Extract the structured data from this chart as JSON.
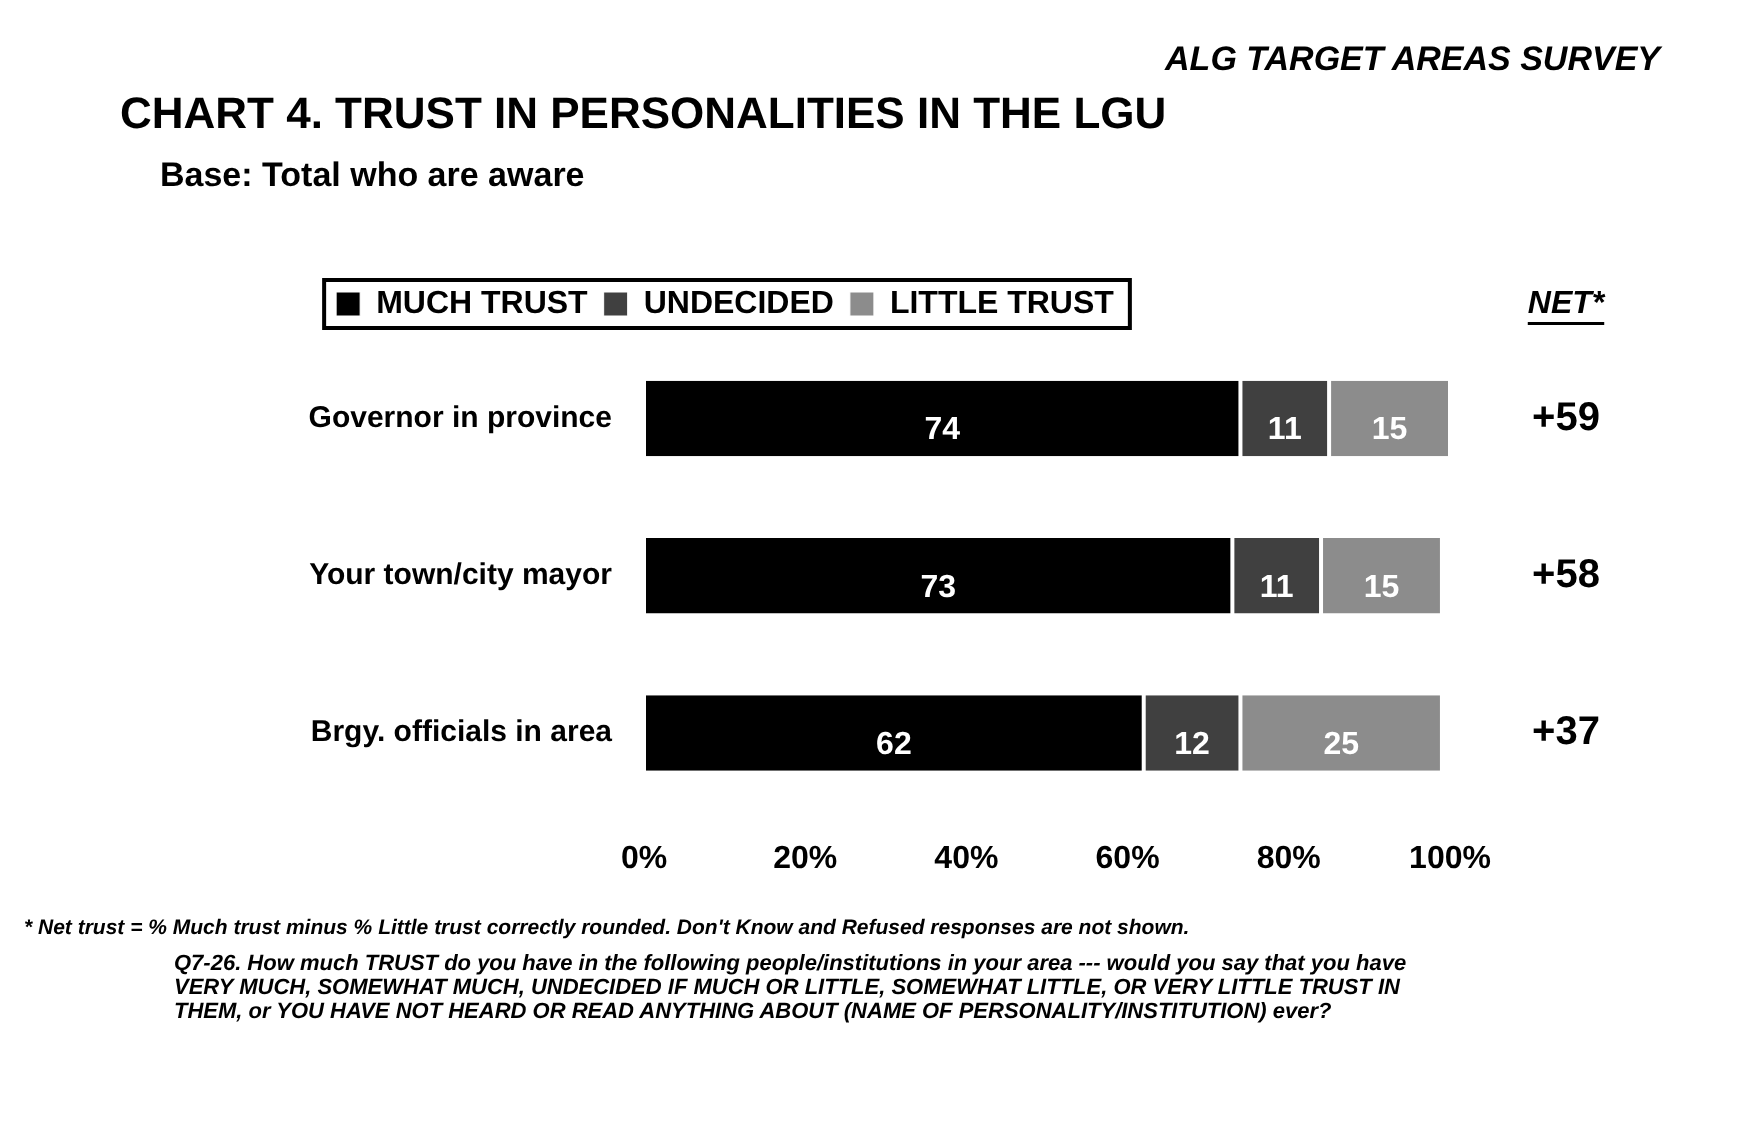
{
  "chart_data": {
    "type": "bar",
    "orientation": "horizontal",
    "stacked": true,
    "title": "CHART 4.  TRUST IN PERSONALITIES IN THE LGU",
    "subtitle": "Base: Total who are aware",
    "categories": [
      "Governor in province",
      "Your town/city mayor",
      "Brgy. officials in area"
    ],
    "series": [
      {
        "name": "MUCH TRUST",
        "color": "#000000",
        "values": [
          74,
          73,
          62
        ]
      },
      {
        "name": "UNDECIDED",
        "color": "#404040",
        "values": [
          11,
          11,
          12
        ]
      },
      {
        "name": "LITTLE TRUST",
        "color": "#8c8c8c",
        "values": [
          15,
          15,
          25
        ]
      }
    ],
    "xlim": [
      0,
      100
    ],
    "xticks": [
      {
        "value": 0,
        "label": "0%"
      },
      {
        "value": 20,
        "label": "20%"
      },
      {
        "value": 40,
        "label": "40%"
      },
      {
        "value": 60,
        "label": "60%"
      },
      {
        "value": 80,
        "label": "80%"
      },
      {
        "value": 100,
        "label": "100%"
      }
    ],
    "grid": false,
    "legend": "top",
    "data_labels": true,
    "annotations": [
      "ALG TARGET AREAS SURVEY",
      "NET*",
      "+59",
      "+58",
      "+37",
      "* Net trust = % Much trust  minus % Little trust correctly rounded. Don't Know and Refused responses are not shown.",
      "Q7-26. How much TRUST do you have in the following people/institutions in your area --- would you say that you have VERY MUCH, SOMEWHAT MUCH, UNDECIDED IF MUCH OR LITTLE, SOMEWHAT LITTLE, OR VERY LITTLE TRUST IN THEM, or YOU HAVE NOT HEARD OR READ ANYTHING ABOUT (NAME OF PERSONALITY/INSTITUTION) ever?"
    ]
  }
}
